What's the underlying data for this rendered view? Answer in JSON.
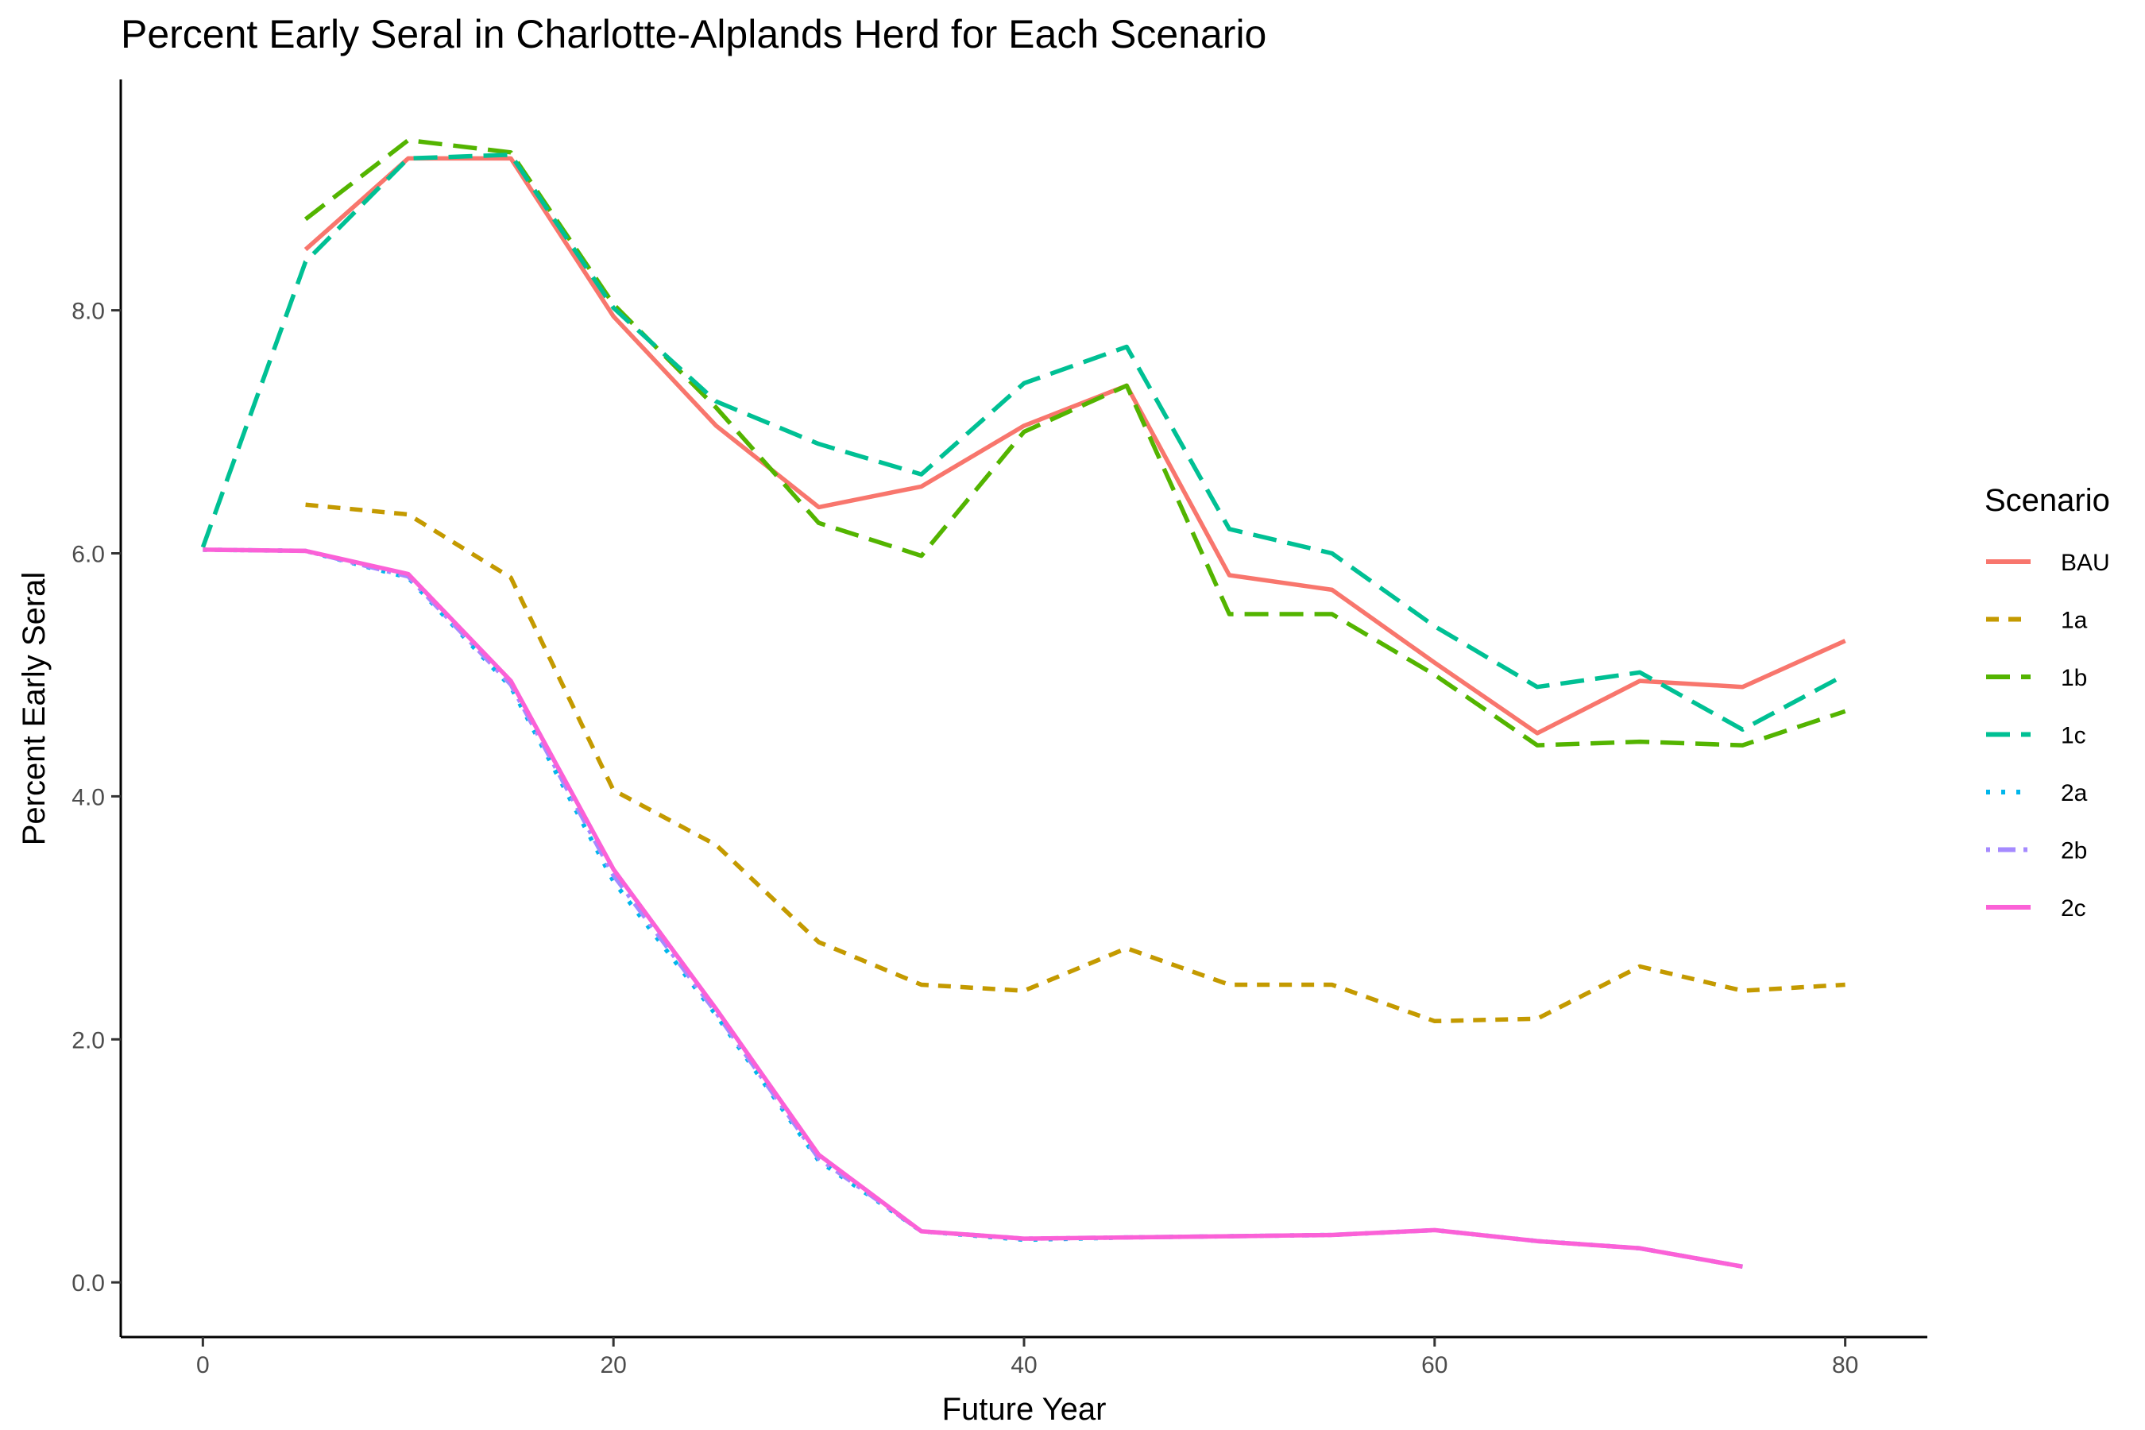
{
  "chart_data": {
    "type": "line",
    "title": "Percent Early Seral in Charlotte-Alplands Herd for Each Scenario",
    "xlabel": "Future Year",
    "ylabel": "Percent Early Seral",
    "xlim": [
      -4,
      84
    ],
    "ylim": [
      -0.45,
      9.9
    ],
    "x_ticks": [
      0,
      20,
      40,
      60,
      80
    ],
    "x_tick_labels": [
      "0",
      "20",
      "40",
      "60",
      "80"
    ],
    "y_ticks": [
      0,
      2,
      4,
      6,
      8
    ],
    "y_tick_labels": [
      "0.0",
      "2.0",
      "4.0",
      "6.0",
      "8.0"
    ],
    "grid": false,
    "legend": {
      "title": "Scenario",
      "position": "right"
    },
    "series": [
      {
        "name": "BAU",
        "color": "#F8766D",
        "dash": "solid",
        "x": [
          5,
          10,
          15,
          20,
          25,
          30,
          35,
          40,
          45,
          50,
          55,
          60,
          65,
          70,
          75,
          80
        ],
        "y": [
          8.5,
          9.25,
          9.25,
          7.95,
          7.05,
          6.38,
          6.55,
          7.05,
          7.38,
          5.82,
          5.7,
          5.1,
          4.52,
          4.95,
          4.9,
          5.28
        ]
      },
      {
        "name": "1a",
        "color": "#C49A00",
        "dash": "dashed",
        "x": [
          5,
          10,
          15,
          20,
          25,
          30,
          35,
          40,
          45,
          50,
          55,
          60,
          65,
          70,
          75,
          80
        ],
        "y": [
          6.4,
          6.32,
          5.8,
          4.05,
          3.6,
          2.8,
          2.45,
          2.4,
          2.75,
          2.45,
          2.45,
          2.15,
          2.17,
          2.6,
          2.4,
          2.45
        ]
      },
      {
        "name": "1b",
        "color": "#53B400",
        "dash": "longdash",
        "x": [
          5,
          10,
          15,
          20,
          25,
          30,
          35,
          40,
          45,
          50,
          55,
          60,
          65,
          70,
          75,
          80
        ],
        "y": [
          8.75,
          9.4,
          9.3,
          8.05,
          7.2,
          6.25,
          5.98,
          7.0,
          7.38,
          5.5,
          5.5,
          5.0,
          4.42,
          4.45,
          4.42,
          4.7
        ]
      },
      {
        "name": "1c",
        "color": "#00C094",
        "dash": "longdash",
        "x": [
          0,
          5,
          10,
          15,
          20,
          25,
          30,
          35,
          40,
          45,
          50,
          55,
          60,
          65,
          70,
          75,
          80
        ],
        "y": [
          6.05,
          8.4,
          9.25,
          9.28,
          8.02,
          7.25,
          6.9,
          6.65,
          7.4,
          7.7,
          6.2,
          6.0,
          5.4,
          4.9,
          5.02,
          4.55,
          5.0
        ]
      },
      {
        "name": "2a",
        "color": "#00B6EB",
        "dash": "dotted",
        "x": [
          0,
          5,
          10,
          15,
          20,
          25,
          30,
          35,
          40,
          45,
          50,
          55,
          60,
          65,
          70,
          75
        ],
        "y": [
          6.03,
          6.02,
          5.8,
          4.9,
          3.3,
          2.2,
          1.0,
          0.42,
          0.35,
          0.37,
          0.38,
          0.39,
          0.43,
          0.34,
          0.28,
          0.13
        ]
      },
      {
        "name": "2b",
        "color": "#A58AFF",
        "dash": "dotdash",
        "x": [
          0,
          5,
          10,
          15,
          20,
          25,
          30,
          35,
          40,
          45,
          50,
          55,
          60,
          65,
          70,
          75
        ],
        "y": [
          6.03,
          6.02,
          5.81,
          4.92,
          3.35,
          2.22,
          1.02,
          0.42,
          0.36,
          0.37,
          0.38,
          0.39,
          0.43,
          0.34,
          0.28,
          0.13
        ]
      },
      {
        "name": "2c",
        "color": "#FB61D7",
        "dash": "solid",
        "x": [
          0,
          5,
          10,
          15,
          20,
          25,
          30,
          35,
          40,
          45,
          50,
          55,
          60,
          65,
          70,
          75
        ],
        "y": [
          6.03,
          6.02,
          5.83,
          4.95,
          3.4,
          2.25,
          1.05,
          0.42,
          0.36,
          0.37,
          0.38,
          0.39,
          0.43,
          0.34,
          0.28,
          0.13
        ]
      }
    ]
  }
}
